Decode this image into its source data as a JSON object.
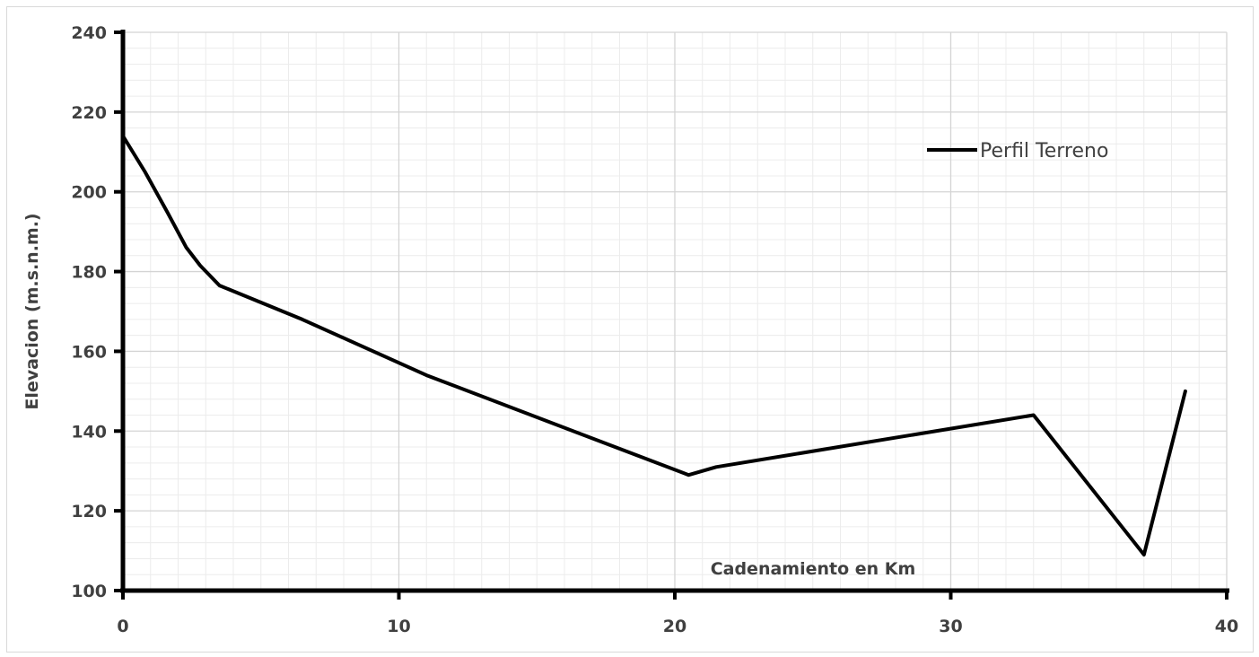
{
  "chart_data": {
    "type": "line",
    "title": "",
    "xlabel": "Cadenamiento en Km",
    "ylabel": "Elevacion (m.s.n.m.)",
    "xlim": [
      0,
      40
    ],
    "ylim": [
      100,
      240
    ],
    "x_ticks": [
      "0",
      "10",
      "20",
      "30",
      "40"
    ],
    "y_ticks": [
      "100",
      "120",
      "140",
      "160",
      "180",
      "200",
      "220",
      "240"
    ],
    "grid": true,
    "legend_position": "top-right",
    "series": [
      {
        "name": "Perfil Terreno",
        "color": "#000000",
        "x": [
          0,
          0.8,
          1.6,
          2.3,
          2.8,
          3.5,
          6.5,
          11.0,
          20.5,
          21.5,
          33.0,
          37.0,
          38.5
        ],
        "y": [
          214,
          205,
          195,
          186,
          181.5,
          176.5,
          168,
          154,
          129,
          131,
          144,
          109,
          150
        ]
      }
    ]
  }
}
